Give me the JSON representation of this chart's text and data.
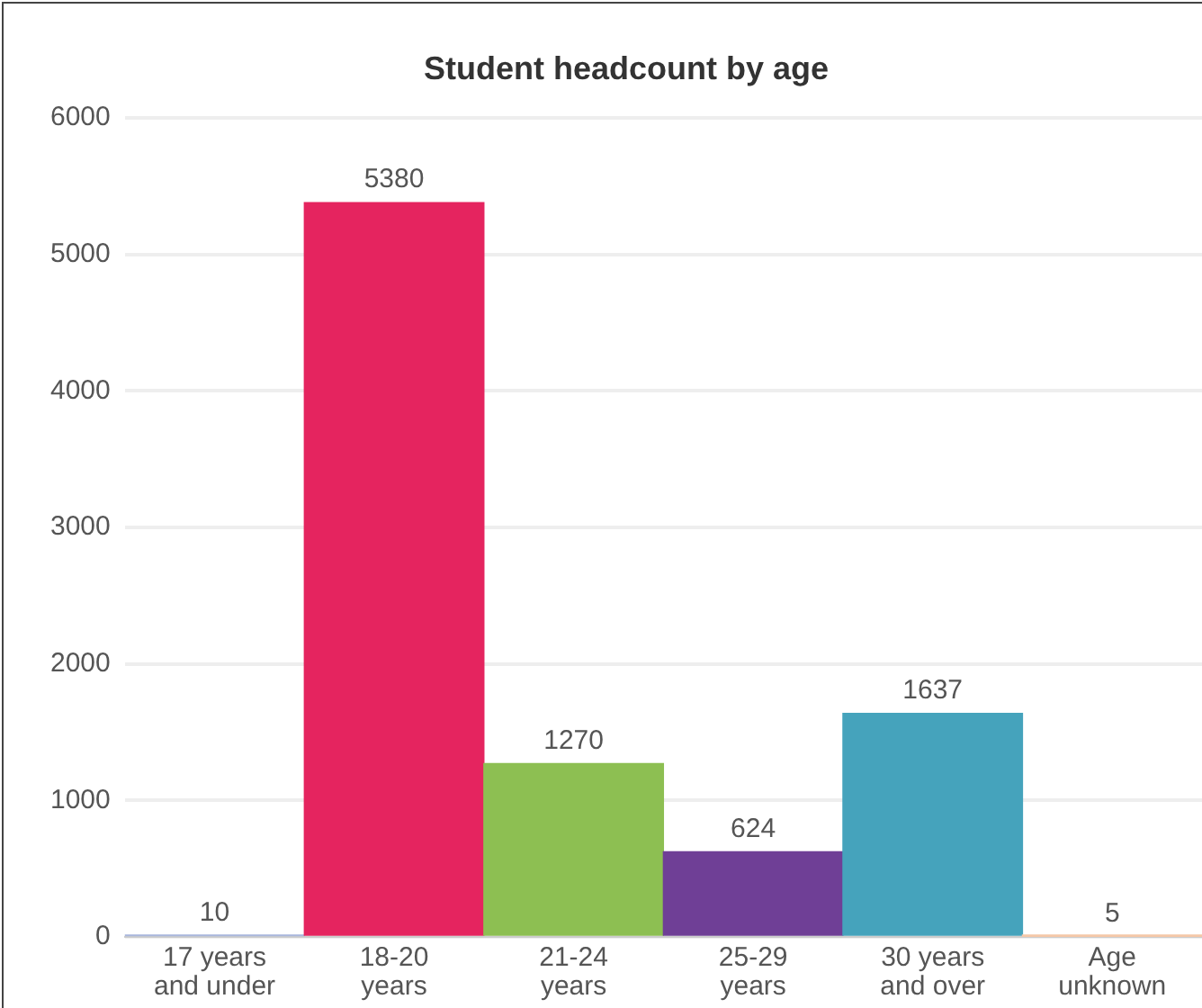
{
  "chart_data": {
    "type": "bar",
    "title": "Student headcount by age",
    "categories": [
      "17 years and under",
      "18-20 years",
      "21-24 years",
      "25-29 years",
      "30 years and over",
      "Age unknown"
    ],
    "values": [
      10,
      5380,
      1270,
      624,
      1637,
      5
    ],
    "colors": [
      "#a9b6dc",
      "#e5245f",
      "#8dbf52",
      "#6f3f96",
      "#45a3bc",
      "#f5c8a8"
    ],
    "ylim": [
      0,
      6000
    ],
    "yticks": [
      0,
      1000,
      2000,
      3000,
      4000,
      5000,
      6000
    ],
    "grid": "y",
    "data_labels": true
  }
}
